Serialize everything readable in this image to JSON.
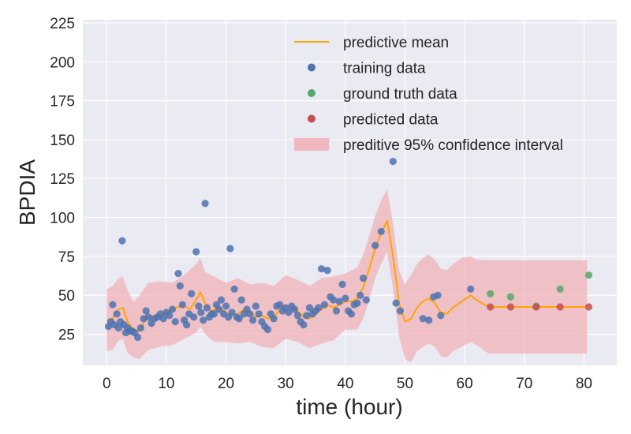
{
  "chart_data": {
    "type": "scatter",
    "xlabel": "time (hour)",
    "ylabel": "BPDIA",
    "xlim": [
      -4,
      85.5
    ],
    "ylim": [
      5,
      227
    ],
    "x_ticks": [
      0,
      10,
      20,
      30,
      40,
      50,
      60,
      70,
      80
    ],
    "y_ticks": [
      25,
      50,
      75,
      100,
      125,
      150,
      175,
      200,
      225
    ],
    "grid": true,
    "legend_position": "upper-right",
    "colors": {
      "background": "#eaeaf2",
      "grid": "#ffffff",
      "mean": "#ffa500",
      "training": "#4c72b0",
      "ground_truth": "#55a868",
      "predicted": "#c44e52",
      "band": "#f2b1b8"
    },
    "legend": [
      {
        "key": "mean",
        "label": "predictive mean",
        "marker": "line"
      },
      {
        "key": "training",
        "label": "training data",
        "marker": "dot"
      },
      {
        "key": "ground_truth",
        "label": "ground truth data",
        "marker": "dot"
      },
      {
        "key": "predicted",
        "label": "predicted data",
        "marker": "dot"
      },
      {
        "key": "band",
        "label": "preditive 95% confidence interval",
        "marker": "patch"
      }
    ],
    "series": [
      {
        "name": "predictive mean",
        "kind": "line",
        "points": [
          [
            0,
            34
          ],
          [
            1,
            35
          ],
          [
            2,
            41
          ],
          [
            2.7,
            42
          ],
          [
            3.5,
            33
          ],
          [
            4.5,
            28
          ],
          [
            5.5,
            27
          ],
          [
            6.5,
            35
          ],
          [
            8,
            37
          ],
          [
            10,
            38
          ],
          [
            11.5,
            42
          ],
          [
            13,
            43
          ],
          [
            14,
            41
          ],
          [
            15,
            47
          ],
          [
            15.7,
            52
          ],
          [
            16.5,
            45
          ],
          [
            17.5,
            40
          ],
          [
            19,
            42
          ],
          [
            20,
            39
          ],
          [
            21,
            37
          ],
          [
            22,
            38
          ],
          [
            23,
            41
          ],
          [
            24,
            39
          ],
          [
            25,
            36
          ],
          [
            26,
            37
          ],
          [
            27,
            35
          ],
          [
            28,
            36
          ],
          [
            29.5,
            43
          ],
          [
            31,
            42
          ],
          [
            32,
            40
          ],
          [
            33,
            36
          ],
          [
            34,
            35
          ],
          [
            35,
            38
          ],
          [
            36,
            41
          ],
          [
            37,
            44
          ],
          [
            38,
            42
          ],
          [
            39,
            44
          ],
          [
            40,
            46
          ],
          [
            41,
            46
          ],
          [
            42,
            48
          ],
          [
            43,
            55
          ],
          [
            44,
            67
          ],
          [
            45,
            80
          ],
          [
            46,
            90
          ],
          [
            47,
            98
          ],
          [
            48,
            75
          ],
          [
            49,
            45
          ],
          [
            50,
            33
          ],
          [
            51,
            35
          ],
          [
            52,
            42
          ],
          [
            53,
            46
          ],
          [
            54,
            48
          ],
          [
            55,
            45
          ],
          [
            56,
            39
          ],
          [
            57,
            38
          ],
          [
            58,
            42
          ],
          [
            59.5,
            46
          ],
          [
            61,
            50
          ],
          [
            62,
            47
          ],
          [
            64,
            42.5
          ],
          [
            68,
            42.5
          ],
          [
            72,
            42.5
          ],
          [
            76,
            42.5
          ],
          [
            80.5,
            42.5
          ]
        ]
      },
      {
        "name": "preditive 95% confidence interval",
        "kind": "band",
        "upper": [
          [
            0,
            54
          ],
          [
            1,
            56
          ],
          [
            2,
            61
          ],
          [
            2.7,
            62
          ],
          [
            3.5,
            53
          ],
          [
            4.5,
            46
          ],
          [
            5.5,
            50
          ],
          [
            7,
            58
          ],
          [
            9,
            59
          ],
          [
            11,
            58
          ],
          [
            13,
            63
          ],
          [
            15,
            70
          ],
          [
            15.7,
            74
          ],
          [
            16.5,
            65
          ],
          [
            18,
            62
          ],
          [
            20,
            58
          ],
          [
            22,
            61
          ],
          [
            24,
            57
          ],
          [
            26,
            58
          ],
          [
            28,
            56
          ],
          [
            30,
            63
          ],
          [
            32,
            60
          ],
          [
            34,
            56
          ],
          [
            36,
            61
          ],
          [
            38,
            62
          ],
          [
            40,
            64
          ],
          [
            42,
            68
          ],
          [
            43,
            76
          ],
          [
            44,
            88
          ],
          [
            45,
            101
          ],
          [
            46,
            111
          ],
          [
            47,
            118
          ],
          [
            48,
            96
          ],
          [
            49,
            66
          ],
          [
            50,
            57
          ],
          [
            51,
            63
          ],
          [
            52,
            70
          ],
          [
            53,
            74
          ],
          [
            54,
            76
          ],
          [
            55,
            73
          ],
          [
            56,
            67
          ],
          [
            57,
            66
          ],
          [
            58,
            70
          ],
          [
            59.5,
            74
          ],
          [
            61,
            75
          ],
          [
            62,
            73
          ],
          [
            64,
            72.5
          ],
          [
            68,
            72.5
          ],
          [
            72,
            72.5
          ],
          [
            76,
            72.5
          ],
          [
            80.5,
            72.5
          ]
        ],
        "lower": [
          [
            0,
            14
          ],
          [
            1,
            15
          ],
          [
            2,
            21
          ],
          [
            2.7,
            22
          ],
          [
            3.5,
            13
          ],
          [
            4.5,
            10
          ],
          [
            5.5,
            9
          ],
          [
            7,
            15
          ],
          [
            9,
            17
          ],
          [
            11,
            18
          ],
          [
            13,
            22
          ],
          [
            15,
            26
          ],
          [
            15.7,
            30
          ],
          [
            16.5,
            25
          ],
          [
            18,
            20
          ],
          [
            20,
            20
          ],
          [
            22,
            19
          ],
          [
            24,
            20
          ],
          [
            26,
            17
          ],
          [
            28,
            16
          ],
          [
            30,
            22
          ],
          [
            32,
            20
          ],
          [
            34,
            16
          ],
          [
            36,
            19
          ],
          [
            38,
            21
          ],
          [
            40,
            28
          ],
          [
            42,
            28
          ],
          [
            43,
            35
          ],
          [
            44,
            47
          ],
          [
            45,
            61
          ],
          [
            46,
            70
          ],
          [
            47,
            78
          ],
          [
            48,
            54
          ],
          [
            49,
            24
          ],
          [
            50,
            9
          ],
          [
            51,
            7
          ],
          [
            52,
            14
          ],
          [
            53,
            17
          ],
          [
            54,
            19
          ],
          [
            55,
            17
          ],
          [
            56,
            11
          ],
          [
            57,
            10
          ],
          [
            58,
            14
          ],
          [
            59.5,
            17
          ],
          [
            61,
            20
          ],
          [
            62,
            18
          ],
          [
            64,
            12.5
          ],
          [
            68,
            12.5
          ],
          [
            72,
            12.5
          ],
          [
            76,
            12.5
          ],
          [
            80.5,
            12.5
          ]
        ]
      },
      {
        "name": "training data",
        "kind": "scatter",
        "points": [
          [
            0.3,
            30
          ],
          [
            0.7,
            33
          ],
          [
            1,
            44
          ],
          [
            1.3,
            31
          ],
          [
            1.7,
            38
          ],
          [
            2,
            29
          ],
          [
            2.3,
            33
          ],
          [
            2.6,
            85
          ],
          [
            2.9,
            31
          ],
          [
            3.2,
            26
          ],
          [
            3.5,
            29
          ],
          [
            3.9,
            27
          ],
          [
            4.3,
            27
          ],
          [
            4.7,
            26
          ],
          [
            5.2,
            23
          ],
          [
            5.7,
            29
          ],
          [
            6.2,
            35
          ],
          [
            6.6,
            40
          ],
          [
            7,
            36
          ],
          [
            7.5,
            32
          ],
          [
            8,
            35
          ],
          [
            8.5,
            36
          ],
          [
            9,
            38
          ],
          [
            9.5,
            35
          ],
          [
            10,
            39
          ],
          [
            10.5,
            37
          ],
          [
            11,
            41
          ],
          [
            11.5,
            33
          ],
          [
            12,
            64
          ],
          [
            12.3,
            56
          ],
          [
            12.7,
            44
          ],
          [
            13,
            34
          ],
          [
            13.4,
            31
          ],
          [
            13.8,
            38
          ],
          [
            14.2,
            51
          ],
          [
            14.6,
            36
          ],
          [
            15,
            78
          ],
          [
            15.4,
            43
          ],
          [
            15.8,
            39
          ],
          [
            16.2,
            34
          ],
          [
            16.5,
            109
          ],
          [
            16.8,
            42
          ],
          [
            17.2,
            36
          ],
          [
            17.6,
            38
          ],
          [
            18,
            38
          ],
          [
            18.4,
            44
          ],
          [
            18.8,
            41
          ],
          [
            19.2,
            47
          ],
          [
            19.6,
            38
          ],
          [
            20,
            43
          ],
          [
            20.4,
            36
          ],
          [
            20.7,
            80
          ],
          [
            21,
            39
          ],
          [
            21.4,
            54
          ],
          [
            21.8,
            36
          ],
          [
            22.2,
            35
          ],
          [
            22.6,
            47
          ],
          [
            23,
            38
          ],
          [
            23.5,
            41
          ],
          [
            24,
            38
          ],
          [
            24.5,
            34
          ],
          [
            25,
            43
          ],
          [
            25.5,
            38
          ],
          [
            26,
            33
          ],
          [
            26.5,
            30
          ],
          [
            27,
            28
          ],
          [
            27.5,
            38
          ],
          [
            28,
            35
          ],
          [
            28.5,
            43
          ],
          [
            29,
            44
          ],
          [
            29.5,
            40
          ],
          [
            30,
            42
          ],
          [
            30.5,
            39
          ],
          [
            31,
            43
          ],
          [
            31.5,
            41
          ],
          [
            32,
            37
          ],
          [
            32.5,
            33
          ],
          [
            33,
            31
          ],
          [
            33.5,
            37
          ],
          [
            34,
            42
          ],
          [
            34.5,
            38
          ],
          [
            35,
            40
          ],
          [
            35.5,
            42
          ],
          [
            36,
            67
          ],
          [
            36.5,
            44
          ],
          [
            37,
            66
          ],
          [
            37.5,
            49
          ],
          [
            38,
            47
          ],
          [
            38.5,
            40
          ],
          [
            39,
            46
          ],
          [
            39.5,
            57
          ],
          [
            40,
            48
          ],
          [
            40.5,
            40
          ],
          [
            41,
            38
          ],
          [
            41.5,
            44
          ],
          [
            42,
            45
          ],
          [
            42.5,
            50
          ],
          [
            43,
            61
          ],
          [
            43.5,
            47
          ],
          [
            45,
            82
          ],
          [
            46,
            91
          ],
          [
            48,
            136
          ],
          [
            48.5,
            45
          ],
          [
            49.2,
            40
          ],
          [
            53,
            35
          ],
          [
            54,
            34
          ],
          [
            54.8,
            49
          ],
          [
            55.5,
            50
          ],
          [
            56,
            37
          ],
          [
            61,
            54
          ]
        ]
      },
      {
        "name": "ground truth data",
        "kind": "scatter",
        "points": [
          [
            64.3,
            51
          ],
          [
            67.7,
            49
          ],
          [
            72,
            43
          ],
          [
            76,
            54
          ],
          [
            80.8,
            63
          ]
        ]
      },
      {
        "name": "predicted data",
        "kind": "scatter",
        "points": [
          [
            64.3,
            42.5
          ],
          [
            67.7,
            42.5
          ],
          [
            72,
            42.5
          ],
          [
            76,
            42.5
          ],
          [
            80.8,
            42.5
          ]
        ]
      }
    ]
  }
}
